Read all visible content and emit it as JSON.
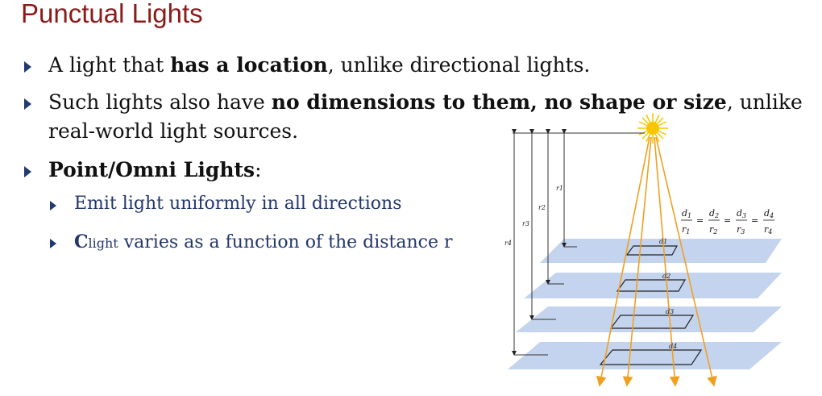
{
  "title": "Punctual Lights",
  "bullets": [
    {
      "pre": "A light that ",
      "bold": "has a location",
      "post": ", unlike directional lights."
    },
    {
      "pre": "Such lights also have ",
      "bold": "no dimensions to them, no shape or size",
      "post": ", unlike",
      "line2": "real-world light sources."
    },
    {
      "bold": "Point/Omni Lights",
      "post": ":"
    }
  ],
  "subbullets": [
    {
      "text": "Emit light uniformly in all directions"
    },
    {
      "c": "C",
      "c_sub": "light",
      "text": " varies as a function of the distance r"
    }
  ],
  "diagram": {
    "ratio": {
      "d1": "d",
      "i1": "1",
      "r1": "r",
      "j1": "1",
      "d2": "d",
      "i2": "2",
      "r2": "r",
      "j2": "2",
      "d3": "d",
      "i3": "3",
      "r3": "r",
      "j3": "3",
      "d4": "d",
      "i4": "4",
      "r4": "r",
      "j4": "4",
      "eq": "="
    },
    "radius_labels": [
      "r1",
      "r2",
      "r3",
      "r4"
    ],
    "side_labels": [
      "d1",
      "d2",
      "d3",
      "d4"
    ],
    "colors": {
      "plane": "#c5d4ee",
      "ray": "#f0a020",
      "sun": "#f7c600",
      "title": "#8b1b1b",
      "accent": "#223a70"
    }
  }
}
